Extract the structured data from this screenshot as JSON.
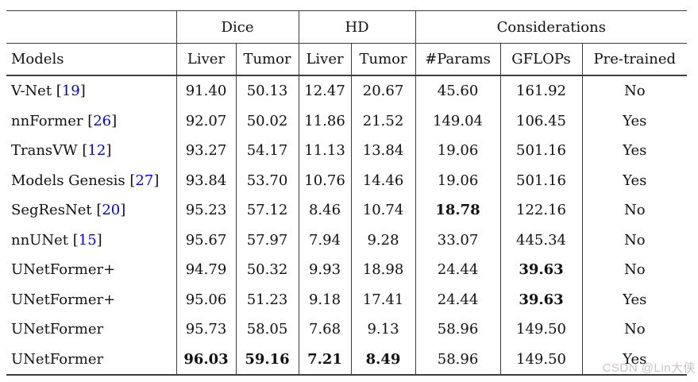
{
  "colors": {
    "text": "#111111",
    "rule_line": "#3d3d3d",
    "citation_link": "#0000ee",
    "watermark": "#cdc2c4",
    "background": "#ffffff"
  },
  "table": {
    "group_headers": [
      {
        "label": "",
        "span": 1
      },
      {
        "label": "Dice",
        "span": 2
      },
      {
        "label": "HD",
        "span": 2
      },
      {
        "label": "Considerations",
        "span": 3
      }
    ],
    "column_headers": [
      "Models",
      "Liver",
      "Tumor",
      "Liver",
      "Tumor",
      "#Params",
      "GFLOPs",
      "Pre-trained"
    ],
    "rows": [
      {
        "model": "V-Net",
        "cite": "19",
        "cells": [
          {
            "v": "91.40",
            "b": false
          },
          {
            "v": "50.13",
            "b": false
          },
          {
            "v": "12.47",
            "b": false
          },
          {
            "v": "20.67",
            "b": false
          },
          {
            "v": "45.60",
            "b": false
          },
          {
            "v": "161.92",
            "b": false
          },
          {
            "v": "No",
            "b": false
          }
        ]
      },
      {
        "model": "nnFormer",
        "cite": "26",
        "cells": [
          {
            "v": "92.07",
            "b": false
          },
          {
            "v": "50.02",
            "b": false
          },
          {
            "v": "11.86",
            "b": false
          },
          {
            "v": "21.52",
            "b": false
          },
          {
            "v": "149.04",
            "b": false
          },
          {
            "v": "106.45",
            "b": false
          },
          {
            "v": "Yes",
            "b": false
          }
        ]
      },
      {
        "model": "TransVW",
        "cite": "12",
        "cells": [
          {
            "v": "93.27",
            "b": false
          },
          {
            "v": "54.17",
            "b": false
          },
          {
            "v": "11.13",
            "b": false
          },
          {
            "v": "13.84",
            "b": false
          },
          {
            "v": "19.06",
            "b": false
          },
          {
            "v": "501.16",
            "b": false
          },
          {
            "v": "Yes",
            "b": false
          }
        ]
      },
      {
        "model": "Models Genesis",
        "cite": "27",
        "cells": [
          {
            "v": "93.84",
            "b": false
          },
          {
            "v": "53.70",
            "b": false
          },
          {
            "v": "10.76",
            "b": false
          },
          {
            "v": "14.46",
            "b": false
          },
          {
            "v": "19.06",
            "b": false
          },
          {
            "v": "501.16",
            "b": false
          },
          {
            "v": "Yes",
            "b": false
          }
        ]
      },
      {
        "model": "SegResNet",
        "cite": "20",
        "cells": [
          {
            "v": "95.23",
            "b": false
          },
          {
            "v": "57.12",
            "b": false
          },
          {
            "v": "8.46",
            "b": false
          },
          {
            "v": "10.74",
            "b": false
          },
          {
            "v": "18.78",
            "b": true
          },
          {
            "v": "122.16",
            "b": false
          },
          {
            "v": "No",
            "b": false
          }
        ]
      },
      {
        "model": "nnUNet",
        "cite": "15",
        "cells": [
          {
            "v": "95.67",
            "b": false
          },
          {
            "v": "57.97",
            "b": false
          },
          {
            "v": "7.94",
            "b": false
          },
          {
            "v": "9.28",
            "b": false
          },
          {
            "v": "33.07",
            "b": false
          },
          {
            "v": "445.34",
            "b": false
          },
          {
            "v": "No",
            "b": false
          }
        ]
      },
      {
        "model": "UNetFormer+",
        "cite": null,
        "cells": [
          {
            "v": "94.79",
            "b": false
          },
          {
            "v": "50.32",
            "b": false
          },
          {
            "v": "9.93",
            "b": false
          },
          {
            "v": "18.98",
            "b": false
          },
          {
            "v": "24.44",
            "b": false
          },
          {
            "v": "39.63",
            "b": true
          },
          {
            "v": "No",
            "b": false
          }
        ]
      },
      {
        "model": "UNetFormer+",
        "cite": null,
        "cells": [
          {
            "v": "95.06",
            "b": false
          },
          {
            "v": "51.23",
            "b": false
          },
          {
            "v": "9.18",
            "b": false
          },
          {
            "v": "17.41",
            "b": false
          },
          {
            "v": "24.44",
            "b": false
          },
          {
            "v": "39.63",
            "b": true
          },
          {
            "v": "Yes",
            "b": false
          }
        ]
      },
      {
        "model": "UNetFormer",
        "cite": null,
        "cells": [
          {
            "v": "95.73",
            "b": false
          },
          {
            "v": "58.05",
            "b": false
          },
          {
            "v": "7.68",
            "b": false
          },
          {
            "v": "9.13",
            "b": false
          },
          {
            "v": "58.96",
            "b": false
          },
          {
            "v": "149.50",
            "b": false
          },
          {
            "v": "No",
            "b": false
          }
        ]
      },
      {
        "model": "UNetFormer",
        "cite": null,
        "cells": [
          {
            "v": "96.03",
            "b": true
          },
          {
            "v": "59.16",
            "b": true
          },
          {
            "v": "7.21",
            "b": true
          },
          {
            "v": "8.49",
            "b": true
          },
          {
            "v": "58.96",
            "b": false
          },
          {
            "v": "149.50",
            "b": false
          },
          {
            "v": "Yes",
            "b": false
          }
        ]
      }
    ]
  },
  "watermark": {
    "text": "CSDN @Lin大侠"
  }
}
